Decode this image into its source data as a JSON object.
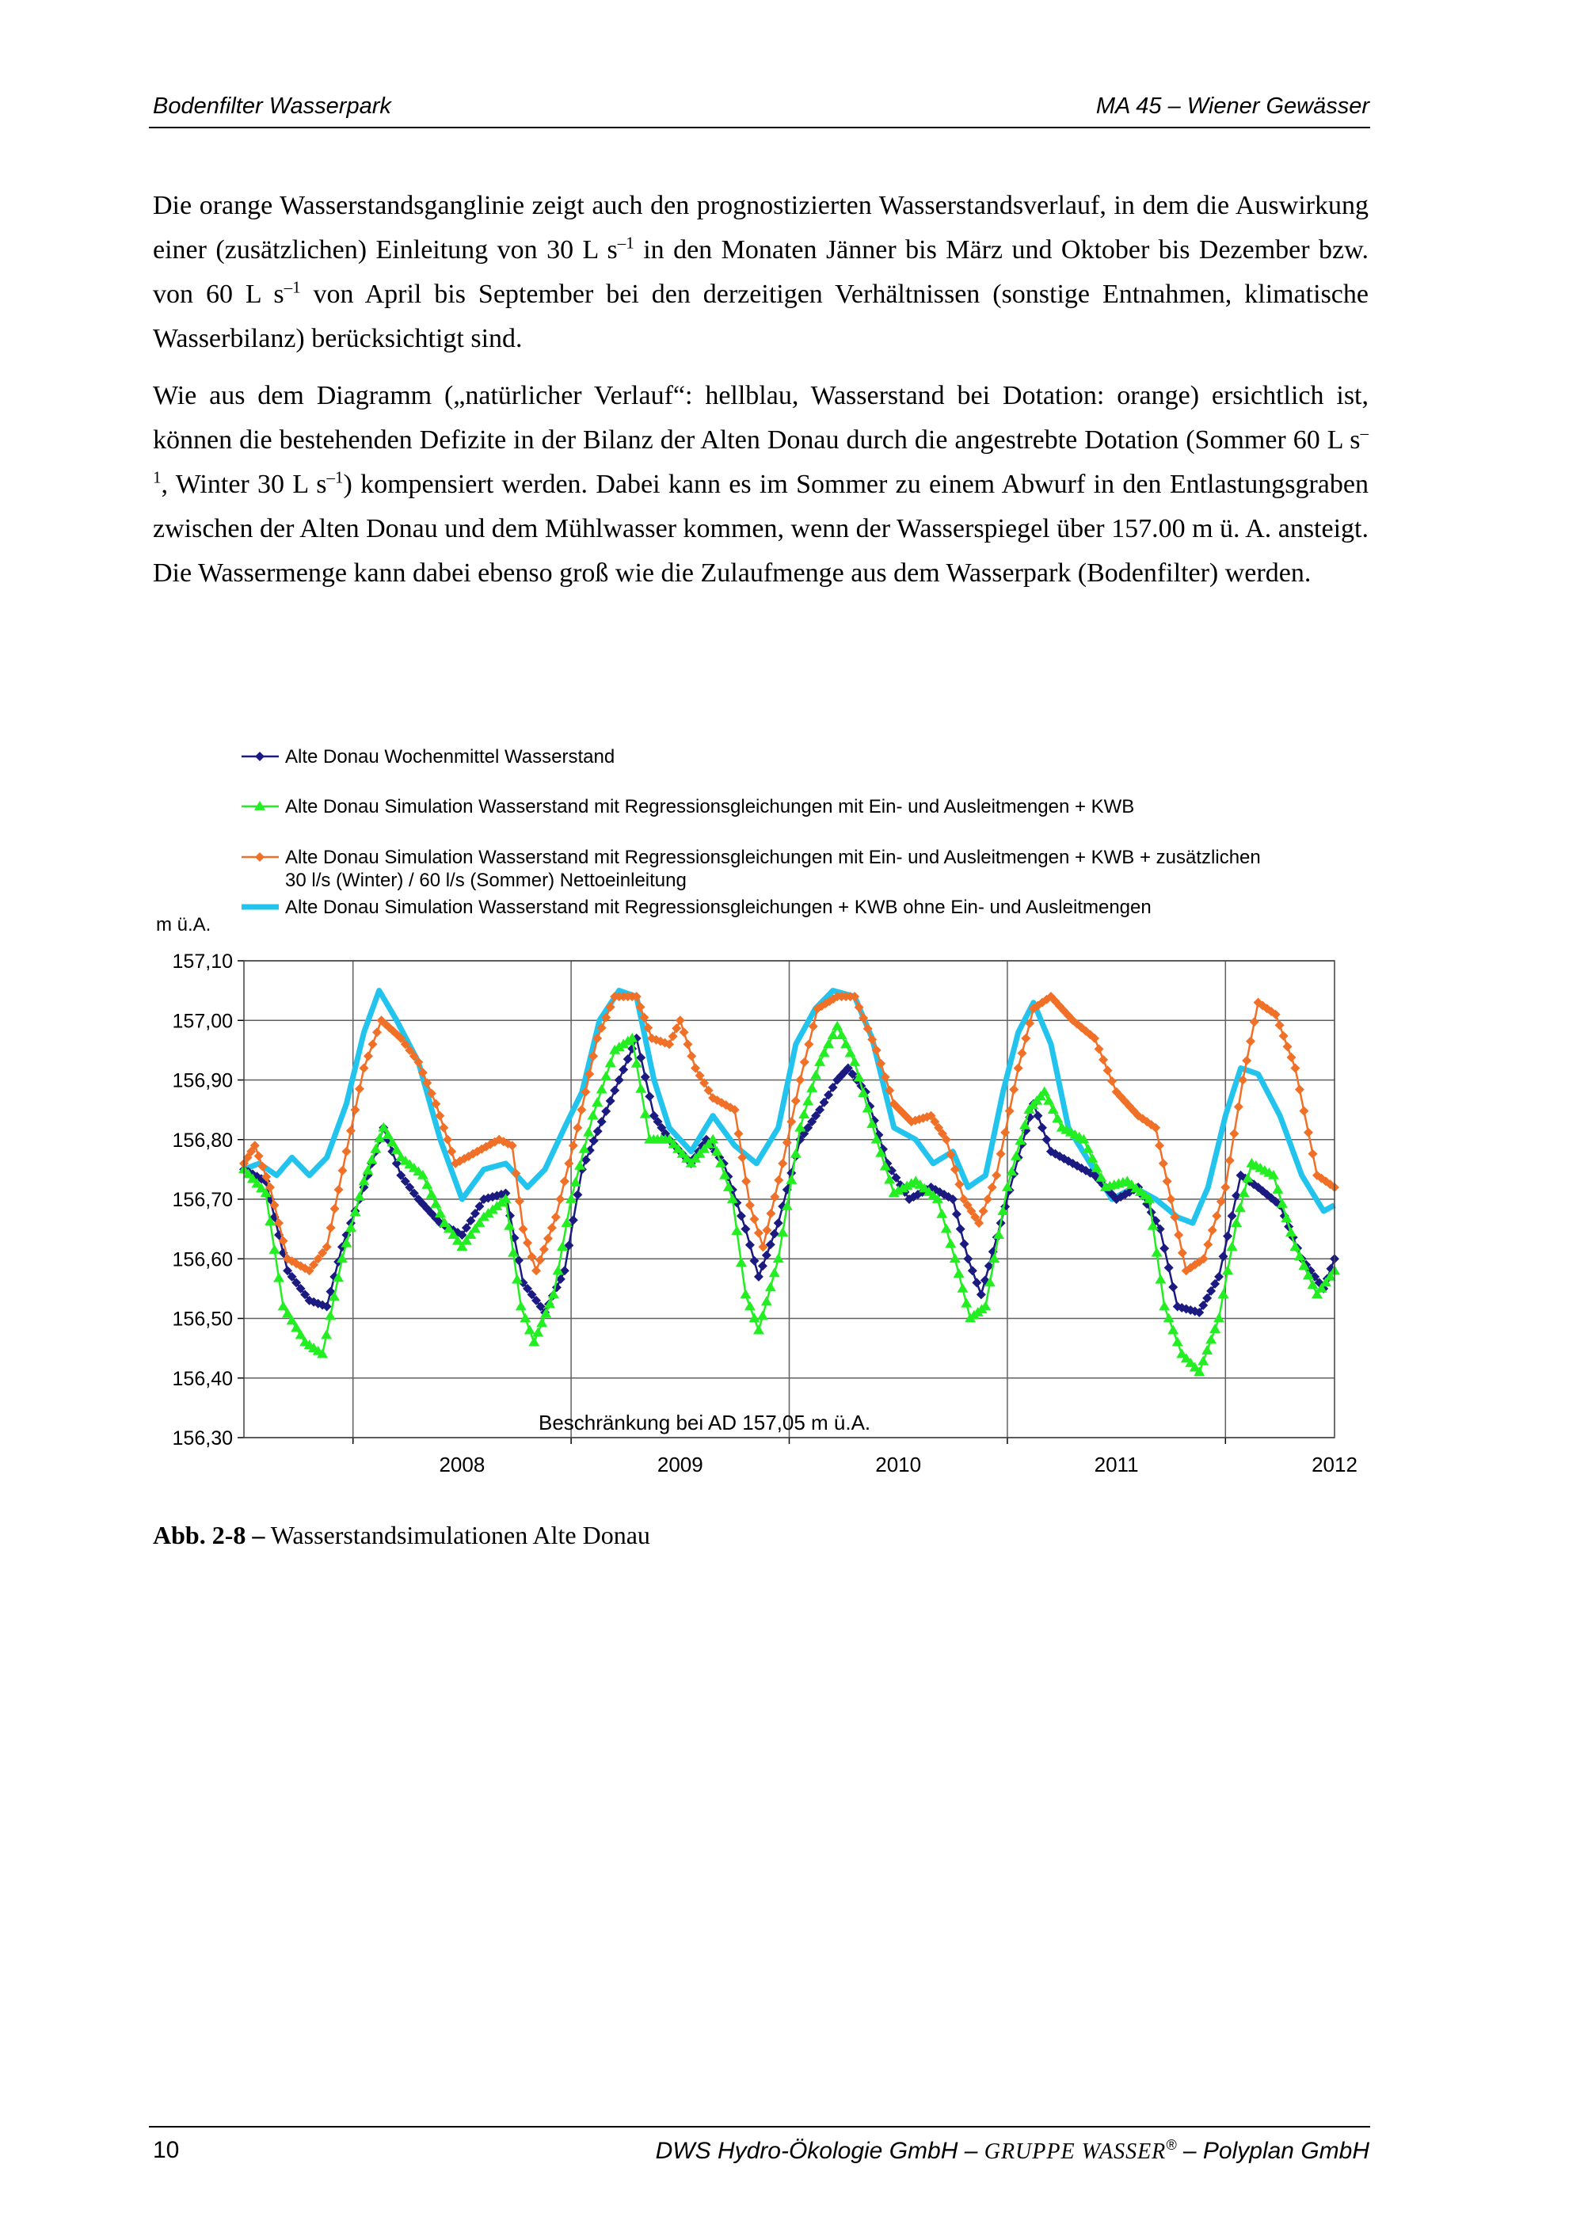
{
  "header": {
    "left": "Bodenfilter Wasserpark",
    "right": "MA 45 – Wiener Gewässer"
  },
  "body": {
    "p1": {
      "a": "Die orange Wasserstandsganglinie zeigt auch den prognostizierten Wasserstandsverlauf, in dem die Auswirkung einer (zusätzlichen) Einleitung von 30 L s",
      "sup1": "–1",
      "b": " in den Monaten Jänner bis März und Oktober bis Dezember bzw. von 60 L s",
      "sup2": "–1",
      "c": " von April bis September bei den derzeitigen Verhältnissen (sonstige Entnahmen, klimatische Wasserbilanz) berücksichtigt sind."
    },
    "p2": {
      "a": "Wie aus dem Diagramm („natürlicher Verlauf“: hellblau, Wasserstand bei Dotation: orange) ersichtlich ist, können die bestehenden Defizite in der Bilanz der Alten Donau durch die angestrebte Dotation (Sommer 60 L s",
      "sup1": "–1",
      "b": ", Winter 30 L s",
      "sup2": "–1",
      "c": ") kompensiert werden. Dabei kann es im Sommer zu einem Abwurf in den Entlastungsgraben zwischen der Alten Donau und dem Mühlwasser kommen, wenn der Wasserspiegel über 157.00 m ü. A. ansteigt. Die Wassermenge kann dabei ebenso groß wie die Zulaufmenge aus dem Wasserpark (Bodenfilter) werden."
    }
  },
  "chart_data": {
    "type": "line",
    "ylabel": "m ü.A.",
    "ylim": [
      156.3,
      157.1
    ],
    "yticks": [
      "156,30",
      "156,40",
      "156,50",
      "156,60",
      "156,70",
      "156,80",
      "156,90",
      "157,00",
      "157,10"
    ],
    "xlim": [
      2007.5,
      2012.5
    ],
    "xticks": [
      "2008",
      "2009",
      "2010",
      "2011",
      "2012"
    ],
    "grid": true,
    "legend_position": "top",
    "annotation": "Beschränkung bei  AD 157,05 m ü.A.",
    "series": [
      {
        "name": "Alte Donau Wochenmittel Wasserstand",
        "color": "#1a1a80",
        "marker": "diamond",
        "points": [
          [
            2007.5,
            156.75
          ],
          [
            2007.6,
            156.73
          ],
          [
            2007.7,
            156.58
          ],
          [
            2007.8,
            156.53
          ],
          [
            2007.88,
            156.52
          ],
          [
            2007.95,
            156.62
          ],
          [
            2008.05,
            156.72
          ],
          [
            2008.14,
            156.82
          ],
          [
            2008.22,
            156.74
          ],
          [
            2008.3,
            156.7
          ],
          [
            2008.4,
            156.66
          ],
          [
            2008.5,
            156.64
          ],
          [
            2008.6,
            156.7
          ],
          [
            2008.7,
            156.71
          ],
          [
            2008.78,
            156.56
          ],
          [
            2008.88,
            156.51
          ],
          [
            2008.97,
            156.58
          ],
          [
            2009.05,
            156.75
          ],
          [
            2009.14,
            156.83
          ],
          [
            2009.22,
            156.9
          ],
          [
            2009.3,
            156.97
          ],
          [
            2009.38,
            156.84
          ],
          [
            2009.45,
            156.8
          ],
          [
            2009.55,
            156.76
          ],
          [
            2009.62,
            156.8
          ],
          [
            2009.7,
            156.76
          ],
          [
            2009.8,
            156.65
          ],
          [
            2009.86,
            156.57
          ],
          [
            2009.95,
            156.66
          ],
          [
            2010.05,
            156.8
          ],
          [
            2010.14,
            156.85
          ],
          [
            2010.22,
            156.9
          ],
          [
            2010.27,
            156.92
          ],
          [
            2010.35,
            156.88
          ],
          [
            2010.45,
            156.76
          ],
          [
            2010.55,
            156.7
          ],
          [
            2010.65,
            156.72
          ],
          [
            2010.75,
            156.7
          ],
          [
            2010.82,
            156.6
          ],
          [
            2010.88,
            156.54
          ],
          [
            2010.97,
            156.66
          ],
          [
            2011.05,
            156.77
          ],
          [
            2011.12,
            156.86
          ],
          [
            2011.2,
            156.78
          ],
          [
            2011.3,
            156.76
          ],
          [
            2011.4,
            156.74
          ],
          [
            2011.5,
            156.7
          ],
          [
            2011.6,
            156.72
          ],
          [
            2011.7,
            156.65
          ],
          [
            2011.78,
            156.52
          ],
          [
            2011.88,
            156.51
          ],
          [
            2011.97,
            156.57
          ],
          [
            2012.07,
            156.74
          ],
          [
            2012.15,
            156.72
          ],
          [
            2012.25,
            156.69
          ],
          [
            2012.35,
            156.6
          ],
          [
            2012.45,
            156.55
          ],
          [
            2012.5,
            156.6
          ]
        ]
      },
      {
        "name": "Alte Donau Simulation Wasserstand mit Regressionsgleichungen mit Ein- und Ausleitmengen + KWB",
        "color": "#22ee22",
        "marker": "triangle",
        "points": [
          [
            2007.5,
            156.75
          ],
          [
            2007.6,
            156.71
          ],
          [
            2007.68,
            156.52
          ],
          [
            2007.78,
            156.46
          ],
          [
            2007.86,
            156.44
          ],
          [
            2007.95,
            156.6
          ],
          [
            2008.05,
            156.73
          ],
          [
            2008.14,
            156.82
          ],
          [
            2008.22,
            156.77
          ],
          [
            2008.32,
            156.74
          ],
          [
            2008.42,
            156.66
          ],
          [
            2008.5,
            156.62
          ],
          [
            2008.6,
            156.67
          ],
          [
            2008.7,
            156.7
          ],
          [
            2008.77,
            156.52
          ],
          [
            2008.83,
            156.46
          ],
          [
            2008.92,
            156.54
          ],
          [
            2009.0,
            156.7
          ],
          [
            2009.1,
            156.84
          ],
          [
            2009.2,
            156.95
          ],
          [
            2009.28,
            156.97
          ],
          [
            2009.36,
            156.8
          ],
          [
            2009.45,
            156.8
          ],
          [
            2009.55,
            156.76
          ],
          [
            2009.65,
            156.8
          ],
          [
            2009.74,
            156.7
          ],
          [
            2009.8,
            156.54
          ],
          [
            2009.86,
            156.48
          ],
          [
            2009.95,
            156.6
          ],
          [
            2010.05,
            156.82
          ],
          [
            2010.14,
            156.93
          ],
          [
            2010.22,
            156.99
          ],
          [
            2010.3,
            156.93
          ],
          [
            2010.4,
            156.8
          ],
          [
            2010.48,
            156.71
          ],
          [
            2010.58,
            156.73
          ],
          [
            2010.68,
            156.7
          ],
          [
            2010.76,
            156.6
          ],
          [
            2010.83,
            156.5
          ],
          [
            2010.9,
            156.52
          ],
          [
            2011.0,
            156.72
          ],
          [
            2011.1,
            156.85
          ],
          [
            2011.17,
            156.88
          ],
          [
            2011.25,
            156.82
          ],
          [
            2011.35,
            156.8
          ],
          [
            2011.45,
            156.72
          ],
          [
            2011.55,
            156.73
          ],
          [
            2011.65,
            156.7
          ],
          [
            2011.72,
            156.52
          ],
          [
            2011.8,
            156.44
          ],
          [
            2011.88,
            156.41
          ],
          [
            2011.97,
            156.5
          ],
          [
            2012.05,
            156.66
          ],
          [
            2012.12,
            156.76
          ],
          [
            2012.22,
            156.74
          ],
          [
            2012.32,
            156.62
          ],
          [
            2012.42,
            156.54
          ],
          [
            2012.5,
            156.58
          ]
        ]
      },
      {
        "name": "Alte Donau Simulation Wasserstand mit Regressionsgleichungen mit Ein- und Ausleitmengen + KWB + zusätzlichen 30 l/s (Winter) / 60 l/s (Sommer) Nettoeinleitung",
        "color": "#f07028",
        "marker": "diamond",
        "points": [
          [
            2007.5,
            156.76
          ],
          [
            2007.55,
            156.79
          ],
          [
            2007.62,
            156.72
          ],
          [
            2007.7,
            156.6
          ],
          [
            2007.8,
            156.58
          ],
          [
            2007.88,
            156.62
          ],
          [
            2007.97,
            156.78
          ],
          [
            2008.05,
            156.92
          ],
          [
            2008.13,
            157.0
          ],
          [
            2008.22,
            156.97
          ],
          [
            2008.3,
            156.93
          ],
          [
            2008.38,
            156.86
          ],
          [
            2008.47,
            156.76
          ],
          [
            2008.57,
            156.78
          ],
          [
            2008.67,
            156.8
          ],
          [
            2008.73,
            156.79
          ],
          [
            2008.78,
            156.65
          ],
          [
            2008.84,
            156.58
          ],
          [
            2008.93,
            156.67
          ],
          [
            2009.03,
            156.82
          ],
          [
            2009.12,
            156.97
          ],
          [
            2009.2,
            157.04
          ],
          [
            2009.3,
            157.04
          ],
          [
            2009.37,
            156.97
          ],
          [
            2009.45,
            156.96
          ],
          [
            2009.5,
            157.0
          ],
          [
            2009.57,
            156.92
          ],
          [
            2009.65,
            156.87
          ],
          [
            2009.75,
            156.85
          ],
          [
            2009.82,
            156.69
          ],
          [
            2009.88,
            156.62
          ],
          [
            2009.97,
            156.76
          ],
          [
            2010.05,
            156.9
          ],
          [
            2010.13,
            157.02
          ],
          [
            2010.22,
            157.04
          ],
          [
            2010.3,
            157.04
          ],
          [
            2010.4,
            156.95
          ],
          [
            2010.48,
            156.86
          ],
          [
            2010.56,
            156.83
          ],
          [
            2010.65,
            156.84
          ],
          [
            2010.72,
            156.8
          ],
          [
            2010.8,
            156.7
          ],
          [
            2010.87,
            156.66
          ],
          [
            2010.95,
            156.74
          ],
          [
            2011.05,
            156.92
          ],
          [
            2011.12,
            157.02
          ],
          [
            2011.2,
            157.04
          ],
          [
            2011.3,
            157.0
          ],
          [
            2011.4,
            156.97
          ],
          [
            2011.5,
            156.88
          ],
          [
            2011.6,
            156.84
          ],
          [
            2011.68,
            156.82
          ],
          [
            2011.75,
            156.7
          ],
          [
            2011.82,
            156.58
          ],
          [
            2011.9,
            156.6
          ],
          [
            2012.0,
            156.72
          ],
          [
            2012.08,
            156.9
          ],
          [
            2012.15,
            157.03
          ],
          [
            2012.23,
            157.01
          ],
          [
            2012.32,
            156.92
          ],
          [
            2012.42,
            156.74
          ],
          [
            2012.5,
            156.72
          ]
        ]
      },
      {
        "name": "Alte Donau Simulation Wasserstand mit Regressionsgleichungen + KWB ohne Ein- und Ausleitmengen",
        "color": "#22c4ee",
        "marker": "none",
        "points": [
          [
            2007.5,
            156.75
          ],
          [
            2007.57,
            156.76
          ],
          [
            2007.65,
            156.74
          ],
          [
            2007.72,
            156.77
          ],
          [
            2007.8,
            156.74
          ],
          [
            2007.88,
            156.77
          ],
          [
            2007.97,
            156.86
          ],
          [
            2008.05,
            156.98
          ],
          [
            2008.12,
            157.05
          ],
          [
            2008.2,
            157.0
          ],
          [
            2008.3,
            156.93
          ],
          [
            2008.4,
            156.8
          ],
          [
            2008.5,
            156.7
          ],
          [
            2008.6,
            156.75
          ],
          [
            2008.7,
            156.76
          ],
          [
            2008.8,
            156.72
          ],
          [
            2008.88,
            156.75
          ],
          [
            2008.97,
            156.82
          ],
          [
            2009.05,
            156.88
          ],
          [
            2009.13,
            157.0
          ],
          [
            2009.22,
            157.05
          ],
          [
            2009.3,
            157.04
          ],
          [
            2009.38,
            156.9
          ],
          [
            2009.45,
            156.82
          ],
          [
            2009.55,
            156.78
          ],
          [
            2009.65,
            156.84
          ],
          [
            2009.75,
            156.79
          ],
          [
            2009.85,
            156.76
          ],
          [
            2009.95,
            156.82
          ],
          [
            2010.03,
            156.96
          ],
          [
            2010.12,
            157.02
          ],
          [
            2010.2,
            157.05
          ],
          [
            2010.3,
            157.04
          ],
          [
            2010.38,
            156.97
          ],
          [
            2010.48,
            156.82
          ],
          [
            2010.58,
            156.8
          ],
          [
            2010.66,
            156.76
          ],
          [
            2010.75,
            156.78
          ],
          [
            2010.82,
            156.72
          ],
          [
            2010.9,
            156.74
          ],
          [
            2010.98,
            156.88
          ],
          [
            2011.05,
            156.98
          ],
          [
            2011.12,
            157.03
          ],
          [
            2011.2,
            156.96
          ],
          [
            2011.28,
            156.82
          ],
          [
            2011.38,
            156.76
          ],
          [
            2011.48,
            156.7
          ],
          [
            2011.58,
            156.72
          ],
          [
            2011.68,
            156.7
          ],
          [
            2011.78,
            156.67
          ],
          [
            2011.85,
            156.66
          ],
          [
            2011.92,
            156.72
          ],
          [
            2012.0,
            156.84
          ],
          [
            2012.07,
            156.92
          ],
          [
            2012.15,
            156.91
          ],
          [
            2012.25,
            156.84
          ],
          [
            2012.35,
            156.74
          ],
          [
            2012.45,
            156.68
          ],
          [
            2012.5,
            156.69
          ]
        ]
      }
    ]
  },
  "caption": {
    "label": "Abb. 2-8 –",
    "text": " Wasserstandsimulationen Alte Donau"
  },
  "footer": {
    "page_number": "10",
    "right_a": "DWS Hydro-Ökologie GmbH – ",
    "right_b": "GRUPPE WASSER",
    "right_reg": "®",
    "right_c": " – Polyplan GmbH"
  }
}
